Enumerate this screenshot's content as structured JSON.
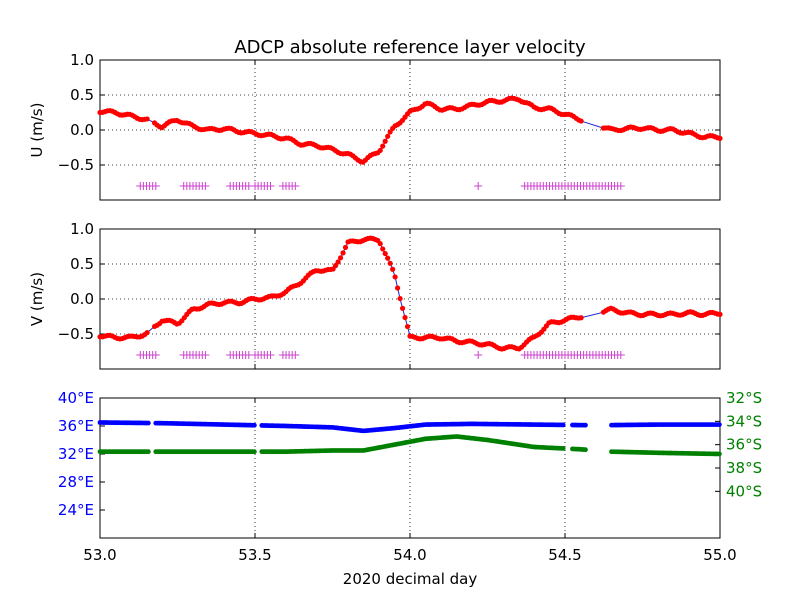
{
  "title": "ADCP absolute reference layer velocity",
  "xlabel": "2020 decimal day",
  "x_ticks": [
    "53.0",
    "53.5",
    "54.0",
    "54.5",
    "55.0"
  ],
  "colors": {
    "u_line": "#2020d0",
    "points": "#ff0000",
    "flags": "#cc44cc",
    "lon": "#0000ff",
    "lat": "#008000"
  },
  "chart_data": [
    {
      "type": "scatter",
      "name": "U panel",
      "ylabel": "U (m/s)",
      "xlim": [
        53.0,
        55.0
      ],
      "ylim": [
        -1.0,
        1.0
      ],
      "yticks": [
        "1.0",
        "0.5",
        "0.0",
        "−0.5"
      ],
      "grid": true,
      "series": [
        {
          "x": [
            53.0,
            53.05,
            53.1,
            53.15,
            53.2,
            53.25,
            53.3,
            53.35,
            53.4,
            53.45,
            53.5,
            53.55,
            53.6,
            53.65,
            53.7,
            53.75,
            53.8,
            53.85,
            53.9,
            53.95,
            54.0,
            54.05,
            54.1,
            54.15,
            54.2,
            54.25,
            54.3,
            54.35,
            54.4,
            54.45,
            54.65,
            54.7,
            54.75,
            54.8,
            54.85,
            54.9,
            54.95,
            55.0
          ],
          "values": [
            0.27,
            0.25,
            0.2,
            0.15,
            0.05,
            0.15,
            0.05,
            0.0,
            0.02,
            -0.02,
            -0.05,
            -0.08,
            -0.12,
            -0.2,
            -0.22,
            -0.28,
            -0.35,
            -0.45,
            -0.3,
            0.05,
            0.25,
            0.38,
            0.3,
            0.3,
            0.35,
            0.4,
            0.42,
            0.45,
            0.32,
            0.3,
            0.0,
            0.02,
            0.03,
            0.0,
            0.0,
            -0.05,
            -0.1,
            -0.1
          ]
        }
      ],
      "flag_marks": {
        "y": -0.8,
        "x_ranges": [
          [
            53.13,
            53.18
          ],
          [
            53.27,
            53.34
          ],
          [
            53.42,
            53.48
          ],
          [
            53.5,
            53.55
          ],
          [
            53.59,
            53.63
          ],
          [
            54.37,
            54.49
          ],
          [
            54.5,
            54.56
          ],
          [
            54.57,
            54.68
          ]
        ],
        "x_singles": [
          54.22
        ]
      }
    },
    {
      "type": "scatter",
      "name": "V panel",
      "ylabel": "V (m/s)",
      "xlim": [
        53.0,
        55.0
      ],
      "ylim": [
        -1.0,
        1.0
      ],
      "yticks": [
        "1.0",
        "0.5",
        "0.0",
        "−0.5"
      ],
      "grid": true,
      "series": [
        {
          "x": [
            53.0,
            53.05,
            53.1,
            53.15,
            53.2,
            53.25,
            53.3,
            53.35,
            53.4,
            53.45,
            53.5,
            53.55,
            53.6,
            53.65,
            53.7,
            53.75,
            53.8,
            53.85,
            53.9,
            53.95,
            54.0,
            54.05,
            54.1,
            54.15,
            54.2,
            54.25,
            54.3,
            54.35,
            54.4,
            54.45,
            54.65,
            54.7,
            54.75,
            54.8,
            54.85,
            54.9,
            54.95,
            55.0
          ],
          "values": [
            -0.52,
            -0.55,
            -0.55,
            -0.5,
            -0.3,
            -0.35,
            -0.15,
            -0.08,
            -0.05,
            -0.05,
            0.0,
            0.02,
            0.1,
            0.25,
            0.42,
            0.4,
            0.8,
            0.85,
            0.85,
            0.35,
            -0.55,
            -0.55,
            -0.55,
            -0.6,
            -0.62,
            -0.65,
            -0.7,
            -0.7,
            -0.55,
            -0.35,
            -0.15,
            -0.2,
            -0.22,
            -0.22,
            -0.22,
            -0.2,
            -0.22,
            -0.2
          ]
        }
      ],
      "flag_marks": {
        "y": -0.8,
        "x_ranges": [
          [
            53.13,
            53.18
          ],
          [
            53.27,
            53.34
          ],
          [
            53.42,
            53.48
          ],
          [
            53.5,
            53.55
          ],
          [
            53.59,
            53.63
          ],
          [
            54.37,
            54.49
          ],
          [
            54.5,
            54.56
          ],
          [
            54.57,
            54.68
          ]
        ],
        "x_singles": [
          54.22
        ]
      }
    },
    {
      "type": "line",
      "name": "position panel",
      "xlim": [
        53.0,
        55.0
      ],
      "left_axis": {
        "ylim": [
          20,
          40
        ],
        "ticks": [
          "40°E",
          "36°E",
          "32°E",
          "28°E",
          "24°E"
        ],
        "tick_values": [
          40,
          36,
          32,
          28,
          24
        ]
      },
      "right_axis": {
        "ylim": [
          44,
          32
        ],
        "ticks": [
          "32°S",
          "34°S",
          "36°S",
          "38°S",
          "40°S"
        ],
        "tick_values": [
          32,
          34,
          36,
          38,
          40
        ]
      },
      "series": [
        {
          "axis": "left",
          "x": [
            53.0,
            53.2,
            53.4,
            53.6,
            53.75,
            53.85,
            53.95,
            54.05,
            54.2,
            54.4,
            54.6,
            54.8,
            55.0
          ],
          "values": [
            36.5,
            36.4,
            36.2,
            36.0,
            35.8,
            35.3,
            35.7,
            36.2,
            36.3,
            36.2,
            36.1,
            36.2,
            36.2
          ]
        },
        {
          "axis": "right",
          "x": [
            53.0,
            53.2,
            53.4,
            53.6,
            53.75,
            53.85,
            53.95,
            54.05,
            54.15,
            54.25,
            54.4,
            54.55,
            54.65,
            54.8,
            55.0
          ],
          "values": [
            36.6,
            36.6,
            36.6,
            36.6,
            36.5,
            36.5,
            36.0,
            35.5,
            35.3,
            35.6,
            36.2,
            36.4,
            36.6,
            36.7,
            36.8
          ]
        }
      ],
      "gaps": [
        [
          53.16,
          53.18
        ],
        [
          53.5,
          53.52
        ],
        [
          54.5,
          54.52
        ],
        [
          54.57,
          54.65
        ]
      ]
    }
  ]
}
